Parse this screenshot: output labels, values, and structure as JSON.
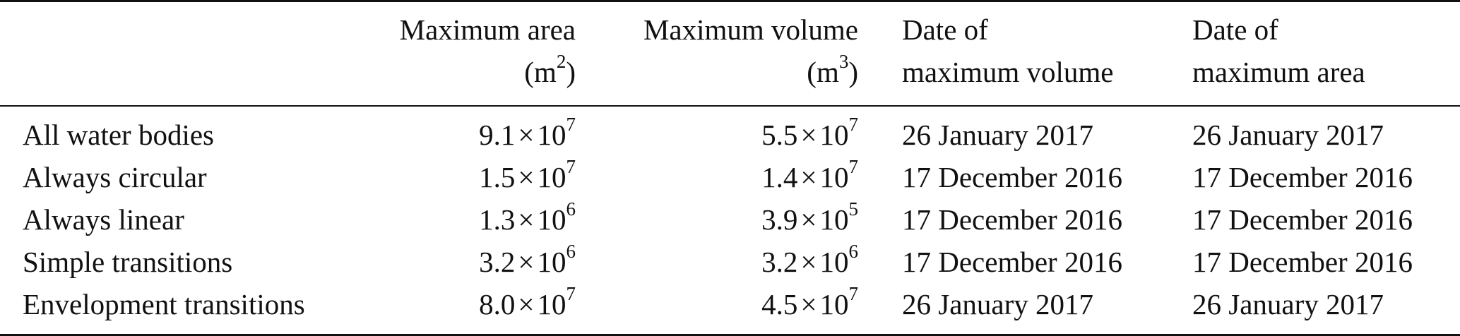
{
  "table": {
    "headers": [
      {
        "line1": "",
        "line2": ""
      },
      {
        "line1": "Maximum area",
        "line2_prefix": "(m",
        "line2_sup": "2",
        "line2_suffix": ")"
      },
      {
        "line1": "Maximum volume",
        "line2_prefix": "(m",
        "line2_sup": "3",
        "line2_suffix": ")"
      },
      {
        "line1": "Date of",
        "line2": "maximum volume"
      },
      {
        "line1": "Date of",
        "line2": "maximum area"
      }
    ],
    "rows": [
      {
        "label": "All water bodies",
        "area": {
          "mantissa": "9.1",
          "times": "×",
          "base": "10",
          "exp": "7"
        },
        "volume": {
          "mantissa": "5.5",
          "times": "×",
          "base": "10",
          "exp": "7"
        },
        "date_volume": "26 January 2017",
        "date_area": "26 January 2017"
      },
      {
        "label": "Always circular",
        "area": {
          "mantissa": "1.5",
          "times": "×",
          "base": "10",
          "exp": "7"
        },
        "volume": {
          "mantissa": "1.4",
          "times": "×",
          "base": "10",
          "exp": "7"
        },
        "date_volume": "17 December 2016",
        "date_area": "17 December 2016"
      },
      {
        "label": "Always linear",
        "area": {
          "mantissa": "1.3",
          "times": "×",
          "base": "10",
          "exp": "6"
        },
        "volume": {
          "mantissa": "3.9",
          "times": "×",
          "base": "10",
          "exp": "5"
        },
        "date_volume": "17 December 2016",
        "date_area": "17 December 2016"
      },
      {
        "label": "Simple transitions",
        "area": {
          "mantissa": "3.2",
          "times": "×",
          "base": "10",
          "exp": "6"
        },
        "volume": {
          "mantissa": "3.2",
          "times": "×",
          "base": "10",
          "exp": "6"
        },
        "date_volume": "17 December 2016",
        "date_area": "17 December 2016"
      },
      {
        "label": "Envelopment transitions",
        "area": {
          "mantissa": "8.0",
          "times": "×",
          "base": "10",
          "exp": "7"
        },
        "volume": {
          "mantissa": "4.5",
          "times": "×",
          "base": "10",
          "exp": "7"
        },
        "date_volume": "26 January 2017",
        "date_area": "26 January 2017"
      }
    ]
  }
}
